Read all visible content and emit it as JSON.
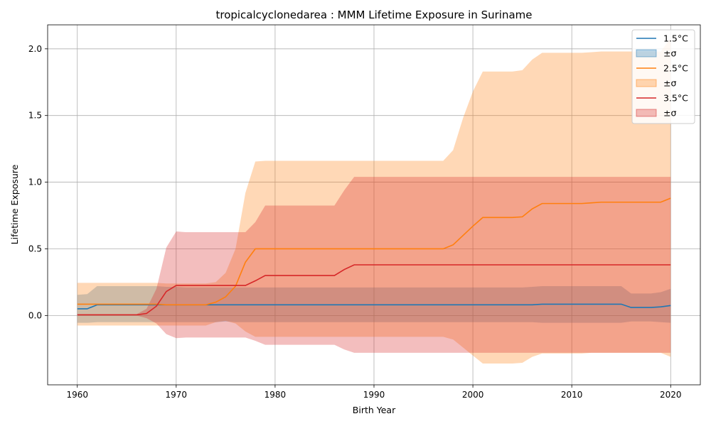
{
  "chart_data": {
    "type": "area",
    "title": "tropicalcyclonedarea : MMM Lifetime Exposure in Suriname",
    "xlabel": "Birth Year",
    "ylabel": "Lifetime Exposure",
    "xlim": [
      1957,
      2023
    ],
    "ylim": [
      -0.52,
      2.18
    ],
    "xticks": [
      1960,
      1970,
      1980,
      1990,
      2000,
      2010,
      2020
    ],
    "yticks": [
      0.0,
      0.5,
      1.0,
      1.5,
      2.0
    ],
    "ytick_labels": [
      "0.0",
      "0.5",
      "1.0",
      "1.5",
      "2.0"
    ],
    "grid": true,
    "legend_position": "top-right",
    "x": [
      1960,
      1961,
      1962,
      1963,
      1964,
      1965,
      1966,
      1967,
      1968,
      1969,
      1970,
      1971,
      1972,
      1973,
      1974,
      1975,
      1976,
      1977,
      1978,
      1979,
      1980,
      1981,
      1982,
      1983,
      1984,
      1985,
      1986,
      1987,
      1988,
      1989,
      1990,
      1991,
      1992,
      1993,
      1994,
      1995,
      1996,
      1997,
      1998,
      1999,
      2000,
      2001,
      2002,
      2003,
      2004,
      2005,
      2006,
      2007,
      2008,
      2009,
      2010,
      2011,
      2012,
      2013,
      2014,
      2015,
      2016,
      2017,
      2018,
      2019,
      2020
    ],
    "series": [
      {
        "name": "1.5°C",
        "band_label": "±σ",
        "line_color": "#1f77b4",
        "band_color": "#1f77b4",
        "band_opacity": 0.3,
        "values": [
          0.05,
          0.05,
          0.08,
          0.08,
          0.08,
          0.08,
          0.08,
          0.08,
          0.08,
          0.08,
          0.08,
          0.08,
          0.08,
          0.08,
          0.08,
          0.08,
          0.08,
          0.08,
          0.08,
          0.08,
          0.08,
          0.08,
          0.08,
          0.08,
          0.08,
          0.08,
          0.08,
          0.08,
          0.08,
          0.08,
          0.08,
          0.08,
          0.08,
          0.08,
          0.08,
          0.08,
          0.08,
          0.08,
          0.08,
          0.08,
          0.08,
          0.08,
          0.08,
          0.08,
          0.08,
          0.08,
          0.08,
          0.085,
          0.085,
          0.085,
          0.085,
          0.085,
          0.085,
          0.085,
          0.085,
          0.085,
          0.06,
          0.06,
          0.06,
          0.065,
          0.075
        ],
        "upper": [
          0.155,
          0.16,
          0.22,
          0.22,
          0.22,
          0.22,
          0.22,
          0.22,
          0.22,
          0.215,
          0.215,
          0.21,
          0.21,
          0.21,
          0.21,
          0.21,
          0.21,
          0.21,
          0.21,
          0.21,
          0.21,
          0.21,
          0.21,
          0.21,
          0.21,
          0.21,
          0.21,
          0.21,
          0.21,
          0.21,
          0.21,
          0.21,
          0.21,
          0.21,
          0.21,
          0.21,
          0.21,
          0.21,
          0.21,
          0.21,
          0.21,
          0.21,
          0.21,
          0.21,
          0.21,
          0.21,
          0.215,
          0.22,
          0.22,
          0.22,
          0.22,
          0.22,
          0.22,
          0.22,
          0.22,
          0.22,
          0.165,
          0.165,
          0.165,
          0.175,
          0.2
        ],
        "lower": [
          -0.055,
          -0.055,
          -0.05,
          -0.05,
          -0.05,
          -0.05,
          -0.05,
          -0.05,
          -0.05,
          -0.05,
          -0.05,
          -0.05,
          -0.05,
          -0.05,
          -0.05,
          -0.045,
          -0.05,
          -0.05,
          -0.05,
          -0.05,
          -0.05,
          -0.05,
          -0.05,
          -0.05,
          -0.05,
          -0.05,
          -0.05,
          -0.05,
          -0.05,
          -0.05,
          -0.05,
          -0.05,
          -0.05,
          -0.05,
          -0.05,
          -0.05,
          -0.05,
          -0.05,
          -0.05,
          -0.05,
          -0.05,
          -0.05,
          -0.05,
          -0.05,
          -0.05,
          -0.05,
          -0.05,
          -0.055,
          -0.055,
          -0.055,
          -0.055,
          -0.055,
          -0.055,
          -0.055,
          -0.055,
          -0.055,
          -0.045,
          -0.045,
          -0.045,
          -0.05,
          -0.055
        ]
      },
      {
        "name": "2.5°C",
        "band_label": "±σ",
        "line_color": "#ff7f0e",
        "band_color": "#ff7f0e",
        "band_opacity": 0.3,
        "values": [
          0.085,
          0.085,
          0.085,
          0.085,
          0.085,
          0.085,
          0.085,
          0.085,
          0.085,
          0.08,
          0.08,
          0.08,
          0.08,
          0.08,
          0.1,
          0.14,
          0.22,
          0.4,
          0.5,
          0.5,
          0.5,
          0.5,
          0.5,
          0.5,
          0.5,
          0.5,
          0.5,
          0.5,
          0.5,
          0.5,
          0.5,
          0.5,
          0.5,
          0.5,
          0.5,
          0.5,
          0.5,
          0.5,
          0.53,
          0.6,
          0.67,
          0.735,
          0.735,
          0.735,
          0.735,
          0.74,
          0.8,
          0.84,
          0.84,
          0.84,
          0.84,
          0.84,
          0.845,
          0.85,
          0.85,
          0.85,
          0.85,
          0.85,
          0.85,
          0.85,
          0.88
        ],
        "upper": [
          0.245,
          0.245,
          0.245,
          0.245,
          0.245,
          0.245,
          0.245,
          0.245,
          0.245,
          0.24,
          0.24,
          0.24,
          0.24,
          0.24,
          0.25,
          0.32,
          0.5,
          0.92,
          1.155,
          1.16,
          1.16,
          1.16,
          1.16,
          1.16,
          1.16,
          1.16,
          1.16,
          1.16,
          1.16,
          1.16,
          1.16,
          1.16,
          1.16,
          1.16,
          1.16,
          1.16,
          1.16,
          1.16,
          1.24,
          1.48,
          1.68,
          1.83,
          1.83,
          1.83,
          1.83,
          1.84,
          1.92,
          1.97,
          1.97,
          1.97,
          1.97,
          1.97,
          1.975,
          1.98,
          1.98,
          1.98,
          1.98,
          1.98,
          1.98,
          1.98,
          2.08
        ],
        "lower": [
          -0.075,
          -0.075,
          -0.075,
          -0.075,
          -0.075,
          -0.075,
          -0.075,
          -0.075,
          -0.075,
          -0.075,
          -0.075,
          -0.075,
          -0.075,
          -0.075,
          -0.05,
          -0.04,
          -0.06,
          -0.12,
          -0.16,
          -0.16,
          -0.16,
          -0.16,
          -0.16,
          -0.16,
          -0.16,
          -0.16,
          -0.16,
          -0.16,
          -0.16,
          -0.16,
          -0.16,
          -0.16,
          -0.16,
          -0.16,
          -0.16,
          -0.16,
          -0.16,
          -0.16,
          -0.18,
          -0.24,
          -0.3,
          -0.36,
          -0.36,
          -0.36,
          -0.36,
          -0.355,
          -0.31,
          -0.285,
          -0.285,
          -0.285,
          -0.285,
          -0.285,
          -0.28,
          -0.28,
          -0.28,
          -0.28,
          -0.28,
          -0.28,
          -0.28,
          -0.28,
          -0.31
        ]
      },
      {
        "name": "3.5°C",
        "band_label": "±σ",
        "line_color": "#d62728",
        "band_color": "#d62728",
        "band_opacity": 0.3,
        "values": [
          0.005,
          0.005,
          0.005,
          0.005,
          0.005,
          0.005,
          0.005,
          0.015,
          0.07,
          0.18,
          0.225,
          0.225,
          0.225,
          0.225,
          0.225,
          0.225,
          0.225,
          0.225,
          0.26,
          0.3,
          0.3,
          0.3,
          0.3,
          0.3,
          0.3,
          0.3,
          0.3,
          0.345,
          0.38,
          0.38,
          0.38,
          0.38,
          0.38,
          0.38,
          0.38,
          0.38,
          0.38,
          0.38,
          0.38,
          0.38,
          0.38,
          0.38,
          0.38,
          0.38,
          0.38,
          0.38,
          0.38,
          0.38,
          0.38,
          0.38,
          0.38,
          0.38,
          0.38,
          0.38,
          0.38,
          0.38,
          0.38,
          0.38,
          0.38,
          0.38,
          0.38
        ],
        "upper": [
          0.01,
          0.01,
          0.01,
          0.01,
          0.01,
          0.01,
          0.01,
          0.05,
          0.2,
          0.51,
          0.63,
          0.625,
          0.625,
          0.625,
          0.625,
          0.625,
          0.625,
          0.625,
          0.7,
          0.825,
          0.825,
          0.825,
          0.825,
          0.825,
          0.825,
          0.825,
          0.825,
          0.94,
          1.04,
          1.04,
          1.04,
          1.04,
          1.04,
          1.04,
          1.04,
          1.04,
          1.04,
          1.04,
          1.04,
          1.04,
          1.04,
          1.04,
          1.04,
          1.04,
          1.04,
          1.04,
          1.04,
          1.04,
          1.04,
          1.04,
          1.04,
          1.04,
          1.04,
          1.04,
          1.04,
          1.04,
          1.04,
          1.04,
          1.04,
          1.04,
          1.04
        ],
        "lower": [
          0.0,
          0.0,
          0.0,
          0.0,
          0.0,
          0.0,
          0.0,
          -0.02,
          -0.06,
          -0.14,
          -0.17,
          -0.165,
          -0.165,
          -0.165,
          -0.165,
          -0.165,
          -0.165,
          -0.165,
          -0.19,
          -0.22,
          -0.22,
          -0.22,
          -0.22,
          -0.22,
          -0.22,
          -0.22,
          -0.22,
          -0.255,
          -0.28,
          -0.28,
          -0.28,
          -0.28,
          -0.28,
          -0.28,
          -0.28,
          -0.28,
          -0.28,
          -0.28,
          -0.28,
          -0.28,
          -0.28,
          -0.28,
          -0.28,
          -0.28,
          -0.28,
          -0.28,
          -0.28,
          -0.28,
          -0.28,
          -0.28,
          -0.28,
          -0.28,
          -0.28,
          -0.28,
          -0.28,
          -0.28,
          -0.28,
          -0.28,
          -0.28,
          -0.28,
          -0.28
        ]
      }
    ]
  }
}
